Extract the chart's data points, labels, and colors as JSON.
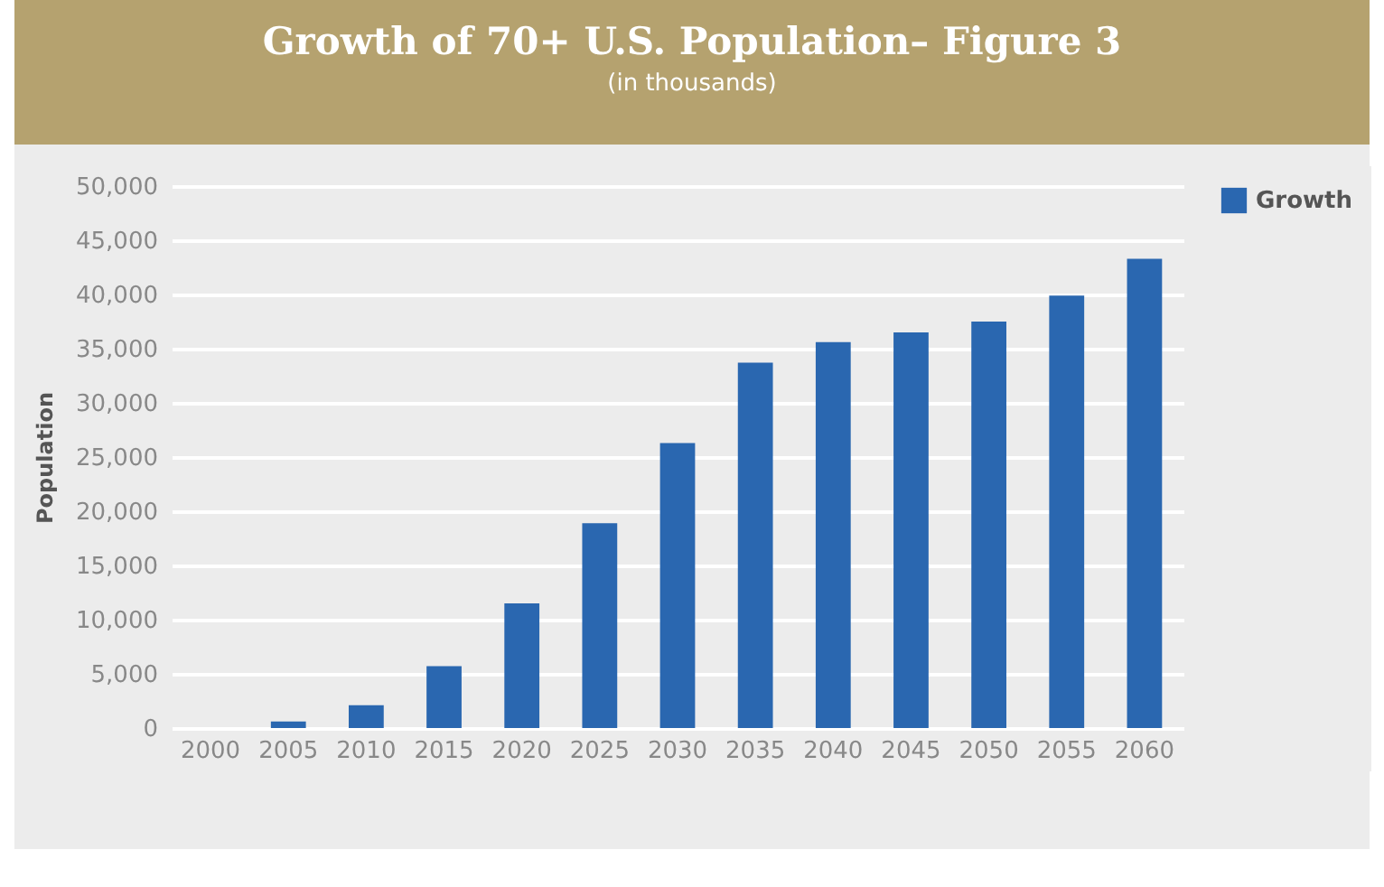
{
  "chart_data": {
    "type": "bar",
    "title": "Growth of 70+ U.S. Population– Figure 3",
    "subtitle": "(in thousands)",
    "ylabel": "Population",
    "categories": [
      "2000",
      "2005",
      "2010",
      "2015",
      "2020",
      "2025",
      "2030",
      "2035",
      "2040",
      "2045",
      "2050",
      "2055",
      "2060"
    ],
    "series": [
      {
        "name": "Growth",
        "color": "#2a67b0",
        "values": [
          0,
          600,
          2100,
          5700,
          11500,
          18900,
          26300,
          33700,
          35600,
          36500,
          37500,
          39900,
          43300
        ]
      }
    ],
    "ylim": [
      0,
      50000
    ],
    "yticks": [
      0,
      {
        "value": 5000,
        "label": "5,000"
      },
      {
        "value": 10000,
        "label": "10,000"
      },
      {
        "value": 15000,
        "label": "15,000"
      },
      {
        "value": 20000,
        "label": "20,000"
      },
      {
        "value": 25000,
        "label": "25,000"
      },
      {
        "value": 30000,
        "label": "30,000"
      },
      {
        "value": 35000,
        "label": "35,000"
      },
      {
        "value": 40000,
        "label": "40,000"
      },
      {
        "value": 45000,
        "label": "45,000"
      },
      {
        "value": 50000,
        "label": "50,000"
      }
    ],
    "grid": "y",
    "legend": "right"
  }
}
